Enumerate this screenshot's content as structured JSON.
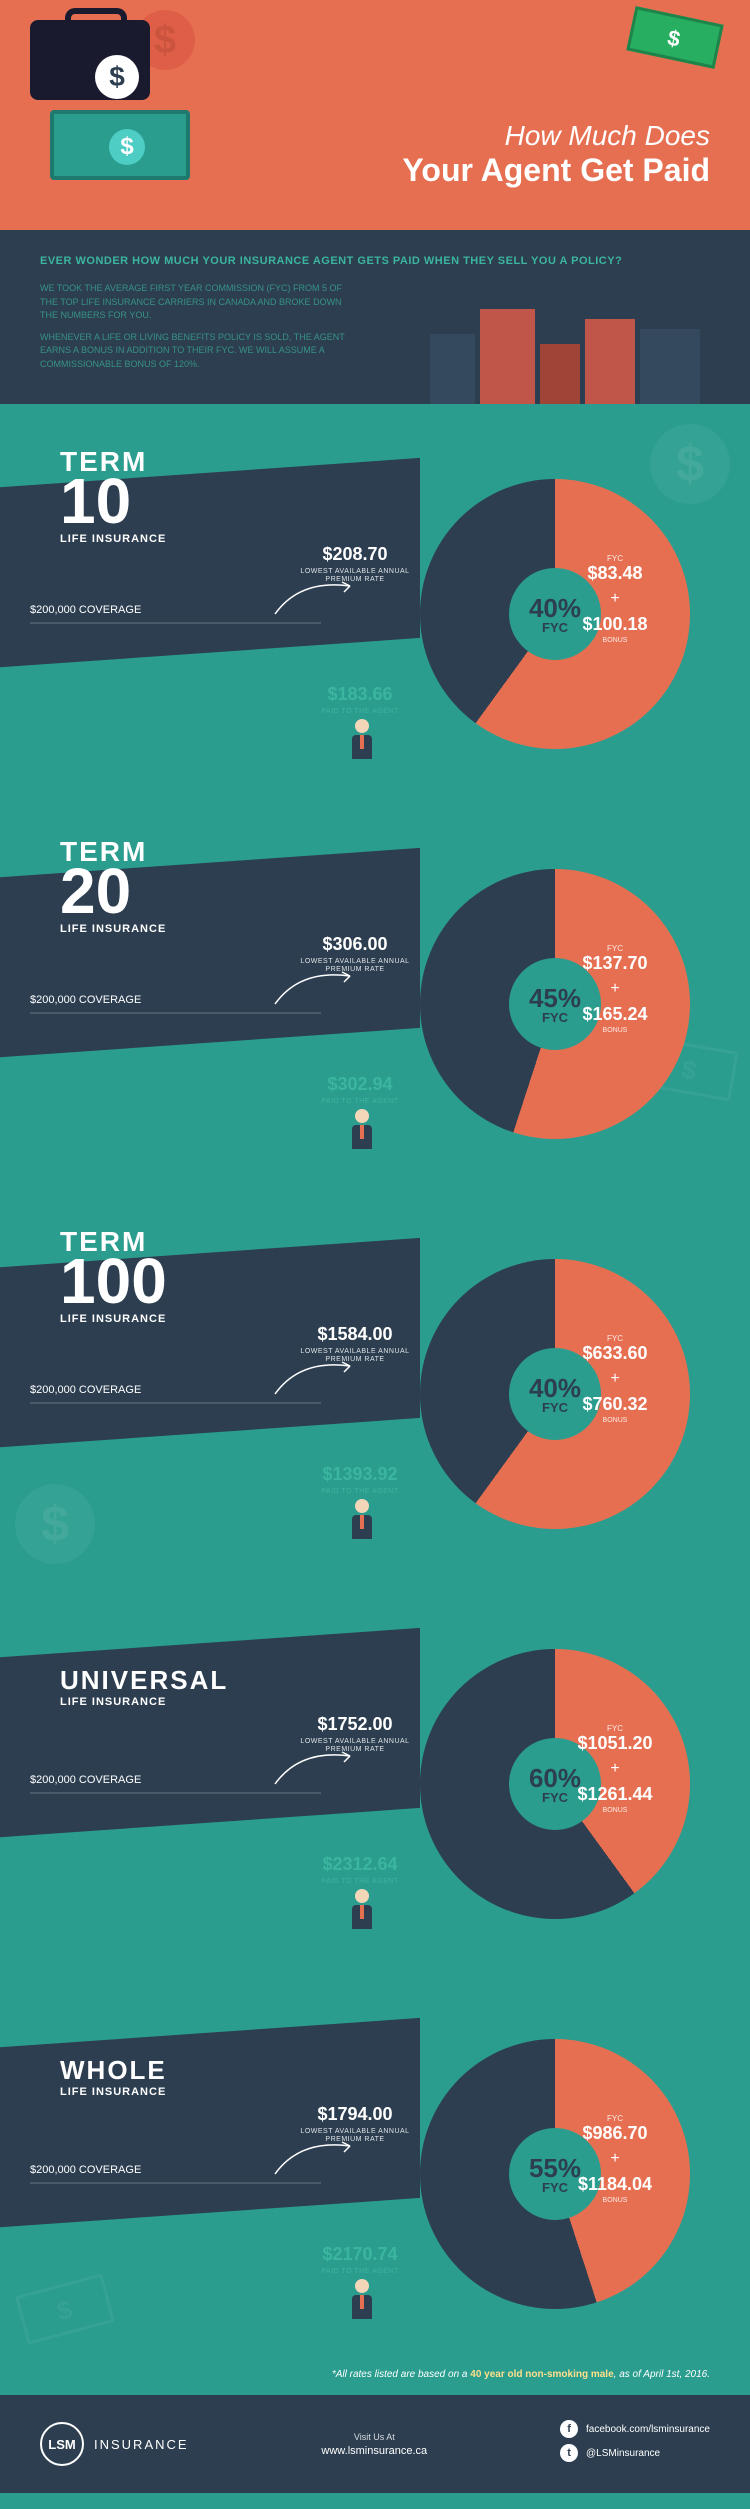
{
  "colors": {
    "teal": "#2a9d8f",
    "darkTeal": "#1e7a6f",
    "coral": "#e76f51",
    "navy": "#2c3e50",
    "mint": "#3cb5a0",
    "highlight": "#ffe08a",
    "white": "#ffffff"
  },
  "hero": {
    "line1": "How Much Does",
    "line2": "Your Agent Get Paid"
  },
  "intro": {
    "headline": "EVER WONDER HOW MUCH YOUR INSURANCE AGENT GETS PAID WHEN THEY SELL YOU A POLICY?",
    "p1": "WE TOOK THE AVERAGE FIRST YEAR COMMISSION (FYC) FROM 5 OF THE TOP LIFE INSURANCE CARRIERS IN CANADA AND BROKE DOWN THE NUMBERS FOR YOU.",
    "p2": "WHENEVER A LIFE OR LIVING BENEFITS POLICY IS SOLD, THE AGENT EARNS A BONUS IN ADDITION TO THEIR FYC. WE WILL ASSUME A COMMISSIONABLE BONUS OF 120%."
  },
  "labels": {
    "termWord": "TERM",
    "lifeInsurance": "LIFE INSURANCE",
    "coverage": "$200,000 COVERAGE",
    "premium": "LOWEST AVAILABLE ANNUAL PREMIUM RATE",
    "paidAgent": "PAID TO THE AGENT",
    "fyc": "FYC",
    "bonus": "BONUS",
    "fycCenter": "FYC"
  },
  "sections": [
    {
      "id": "term10",
      "titleWord": "TERM",
      "titleNum": "10",
      "fycPct": "40%",
      "fycFraction": 0.4,
      "premium": "$208.70",
      "paid": "$183.66",
      "fyc": "$83.48",
      "bonus": "$100.18"
    },
    {
      "id": "term20",
      "titleWord": "TERM",
      "titleNum": "20",
      "fycPct": "45%",
      "fycFraction": 0.45,
      "premium": "$306.00",
      "paid": "$302.94",
      "fyc": "$137.70",
      "bonus": "$165.24"
    },
    {
      "id": "term100",
      "titleWord": "TERM",
      "titleNum": "100",
      "fycPct": "40%",
      "fycFraction": 0.4,
      "premium": "$1584.00",
      "paid": "$1393.92",
      "fyc": "$633.60",
      "bonus": "$760.32"
    },
    {
      "id": "universal",
      "titleWord": "UNIVERSAL",
      "titleNum": "",
      "fycPct": "60%",
      "fycFraction": 0.6,
      "premium": "$1752.00",
      "paid": "$2312.64",
      "fyc": "$1051.20",
      "bonus": "$1261.44"
    },
    {
      "id": "whole",
      "titleWord": "WHOLE",
      "titleNum": "",
      "fycPct": "55%",
      "fycFraction": 0.55,
      "premium": "$1794.00",
      "paid": "$2170.74",
      "fyc": "$986.70",
      "bonus": "$1184.04"
    }
  ],
  "footnote": {
    "prefix": "*All rates listed are based on a ",
    "highlight": "40 year old non-smoking male",
    "suffix": ", as of April 1st, 2016."
  },
  "footer": {
    "logoAbbr": "LSM",
    "logoText": "INSURANCE",
    "visitLabel": "Visit Us At",
    "visitUrl": "www.lsminsurance.ca",
    "fb": "facebook.com/lsminsurance",
    "tw": "@LSMinsurance"
  }
}
